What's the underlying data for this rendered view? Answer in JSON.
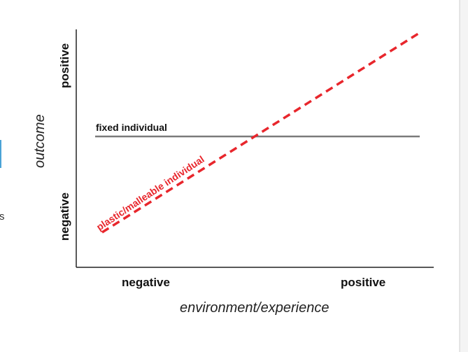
{
  "axes": {
    "x_title": "environment/experience",
    "y_title": "outcome",
    "x_ticks": [
      "negative",
      "positive"
    ],
    "y_ticks": [
      "negative",
      "positive"
    ]
  },
  "lines": {
    "fixed_label": "fixed individual",
    "plastic_label": "plastic/malleable individual"
  },
  "colors": {
    "fixed_line": "#7a7a7a",
    "plastic_line": "#e8262c",
    "axis": "#222222",
    "frame_edge": "#4aa3d6"
  },
  "fragments": {
    "left_edge_glyph": "s"
  }
}
